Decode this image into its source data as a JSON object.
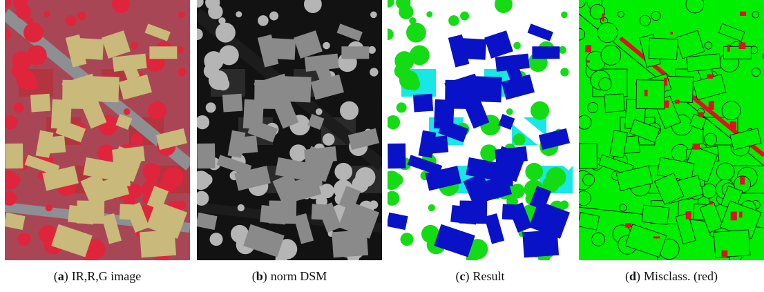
{
  "figure": {
    "panels": [
      {
        "open": "(",
        "letter": "a",
        "close": ")",
        "caption": "IR,R,G image"
      },
      {
        "open": "(",
        "letter": "b",
        "close": ")",
        "caption": "norm DSM"
      },
      {
        "open": "(",
        "letter": "c",
        "close": ")",
        "caption": "Result"
      },
      {
        "open": "(",
        "letter": "d",
        "close": ")",
        "caption": "Misclass. (red)"
      }
    ]
  }
}
